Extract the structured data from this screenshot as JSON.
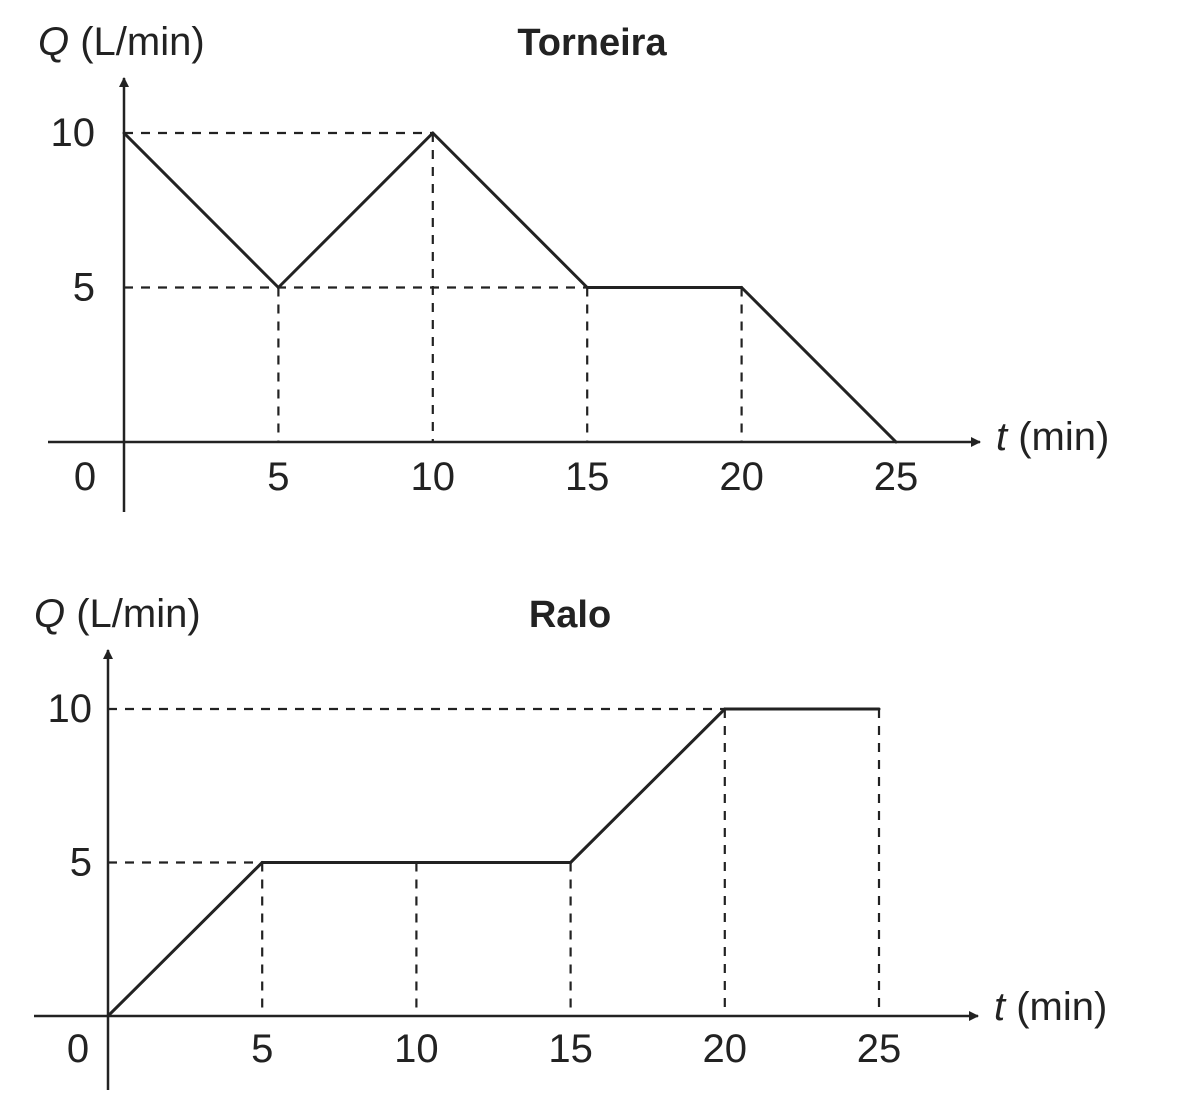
{
  "chart_data": [
    {
      "type": "line",
      "title": "Torneira",
      "ylabel_var": "Q",
      "ylabel_unit": " (L/min)",
      "xlabel_var": "t",
      "xlabel_unit": " (min)",
      "origin_label": "0",
      "xticks": [
        5,
        10,
        15,
        20,
        25
      ],
      "yticks": [
        5,
        10
      ],
      "xlim": [
        0,
        25
      ],
      "ylim": [
        0,
        10
      ],
      "x": [
        0,
        5,
        10,
        15,
        20,
        25
      ],
      "y": [
        10,
        5,
        10,
        5,
        5,
        0
      ],
      "grid": false,
      "line_color": "#222222"
    },
    {
      "type": "line",
      "title": "Ralo",
      "ylabel_var": "Q",
      "ylabel_unit": " (L/min)",
      "xlabel_var": "t",
      "xlabel_unit": " (min)",
      "origin_label": "0",
      "xticks": [
        5,
        10,
        15,
        20,
        25
      ],
      "yticks": [
        5,
        10
      ],
      "xlim": [
        0,
        25
      ],
      "ylim": [
        0,
        10
      ],
      "x": [
        0,
        5,
        10,
        15,
        20,
        25
      ],
      "y": [
        0,
        5,
        5,
        5,
        10,
        10
      ],
      "grid": false,
      "line_color": "#222222"
    }
  ]
}
